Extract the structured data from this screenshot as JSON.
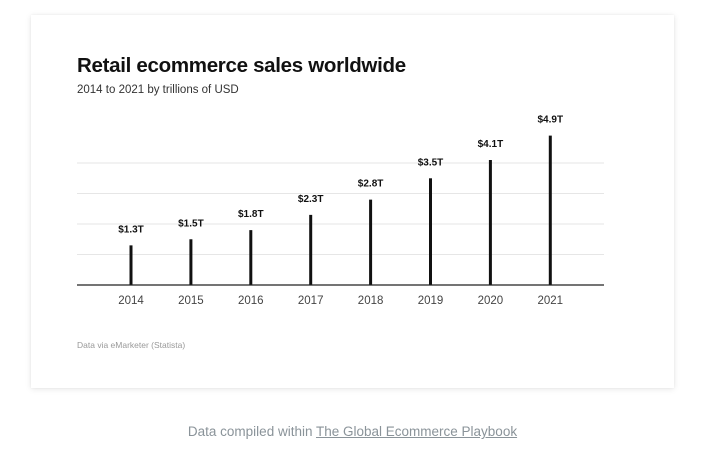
{
  "chart_data": {
    "type": "bar",
    "title": "Retail ecommerce sales worldwide",
    "subtitle": "2014 to 2021 by trillions of USD",
    "xlabel": "",
    "ylabel": "",
    "categories": [
      "2014",
      "2015",
      "2016",
      "2017",
      "2018",
      "2019",
      "2020",
      "2021"
    ],
    "values": [
      1.3,
      1.5,
      1.8,
      2.3,
      2.8,
      3.5,
      4.1,
      4.9
    ],
    "data_labels": [
      "$1.3T",
      "$1.5T",
      "$1.8T",
      "$2.3T",
      "$2.8T",
      "$3.5T",
      "$4.1T",
      "$4.9T"
    ],
    "ylim": [
      0,
      4.1
    ],
    "gridlines": [
      1.0,
      2.0,
      3.0,
      4.0
    ],
    "grid": true,
    "y_axis_labels_shown": false,
    "legend": "none",
    "bar_color": "#111111",
    "grid_color": "#e6e6e6",
    "source": "Data via eMarketer (Statista)"
  },
  "caption": {
    "prefix": "Data compiled within ",
    "link_text": "The Global Ecommerce Playbook"
  }
}
